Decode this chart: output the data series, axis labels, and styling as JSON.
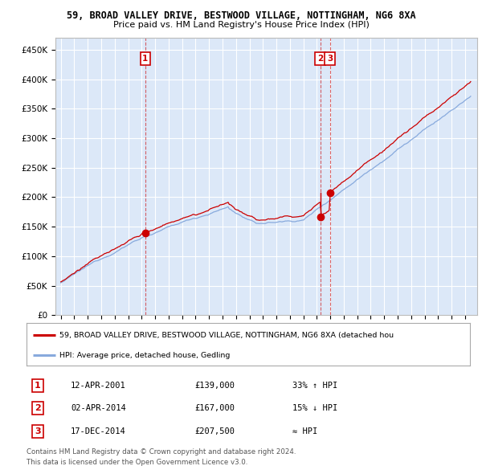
{
  "title1": "59, BROAD VALLEY DRIVE, BESTWOOD VILLAGE, NOTTINGHAM, NG6 8XA",
  "title2": "Price paid vs. HM Land Registry's House Price Index (HPI)",
  "ylim": [
    0,
    470000
  ],
  "yticks": [
    0,
    50000,
    100000,
    150000,
    200000,
    250000,
    300000,
    350000,
    400000,
    450000
  ],
  "ytick_labels": [
    "£0",
    "£50K",
    "£100K",
    "£150K",
    "£200K",
    "£250K",
    "£300K",
    "£350K",
    "£400K",
    "£450K"
  ],
  "background_color": "#ffffff",
  "plot_bg_color": "#dce8f8",
  "grid_color": "#ffffff",
  "red_line_color": "#cc0000",
  "blue_line_color": "#88aadd",
  "sale_marker_color": "#cc0000",
  "t1_year": 2001.27,
  "t2_year": 2014.25,
  "t3_year": 2014.96,
  "p1": 139000,
  "p2": 167000,
  "p3": 207500,
  "transaction1": {
    "label": "1",
    "date": "12-APR-2001",
    "price": 139000,
    "relation": "33% ↑ HPI"
  },
  "transaction2": {
    "label": "2",
    "date": "02-APR-2014",
    "price": 167000,
    "relation": "15% ↓ HPI"
  },
  "transaction3": {
    "label": "3",
    "date": "17-DEC-2014",
    "price": 207500,
    "relation": "≈ HPI"
  },
  "legend_line1": "59, BROAD VALLEY DRIVE, BESTWOOD VILLAGE, NOTTINGHAM, NG6 8XA (detached hou",
  "legend_line2": "HPI: Average price, detached house, Gedling",
  "footer1": "Contains HM Land Registry data © Crown copyright and database right 2024.",
  "footer2": "This data is licensed under the Open Government Licence v3.0."
}
